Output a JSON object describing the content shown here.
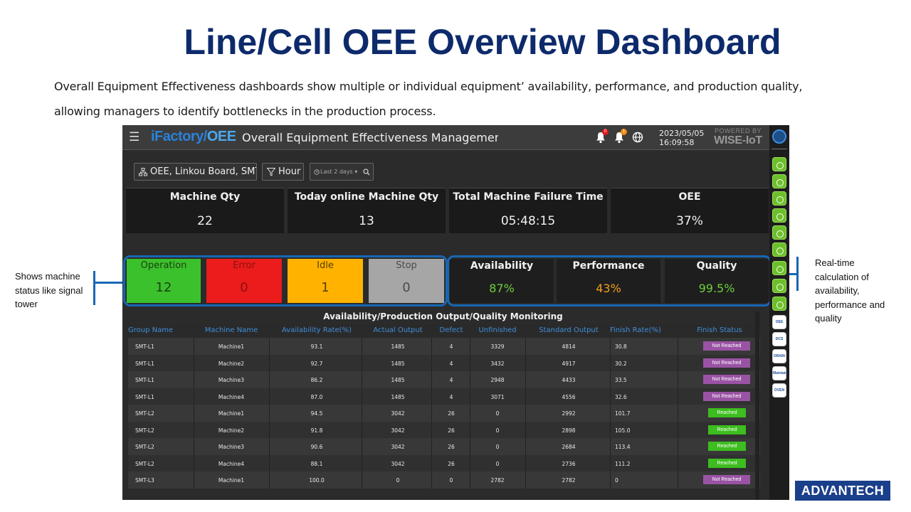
{
  "slide": {
    "title": "Line/Cell OEE Overview Dashboard",
    "description": "Overall Equipment Effectiveness dashboards show multiple or individual equipment’ availability, performance, and production quality, allowing managers to identify bottlenecks in the production process."
  },
  "annotations": {
    "left": "Shows machine status like signal tower",
    "right": "Real-time calculation of availability, performance and quality"
  },
  "app": {
    "brand_part1": "iFactory/",
    "brand_part2": "OEE",
    "system_title": "Overall Equipment Effectiveness Management System",
    "notification_badge_1": "0",
    "notification_badge_2": "1",
    "date": "2023/05/05",
    "time": "16:09:58",
    "powered_by": "POWERED BY",
    "powered_brand": "WISE-IoT"
  },
  "filters": {
    "scope": "OEE, Linkou Board, SMT",
    "granularity": "Hour",
    "range": "Last 2 days"
  },
  "kpis": [
    {
      "label": "Machine Qty",
      "value": "22"
    },
    {
      "label": "Today online Machine Qty",
      "value": "13"
    },
    {
      "label": "Total Machine Failure Time",
      "value": "05:48:15"
    },
    {
      "label": "OEE",
      "value": "37%"
    }
  ],
  "statuses": [
    {
      "label": "Operation",
      "value": "12",
      "color": "#3bc12b"
    },
    {
      "label": "Error",
      "value": "0",
      "color": "#ec1c1c"
    },
    {
      "label": "Idle",
      "value": "1",
      "color": "#ffb300"
    },
    {
      "label": "Stop",
      "value": "0",
      "color": "#a6a6a6"
    }
  ],
  "metrics": [
    {
      "label": "Availability",
      "value": "87%",
      "color": "#6ecf3a"
    },
    {
      "label": "Performance",
      "value": "43%",
      "color": "#f0a020"
    },
    {
      "label": "Quality",
      "value": "99.5%",
      "color": "#6ecf3a"
    }
  ],
  "table": {
    "title": "Availability/Production Output/Quality Monitoring",
    "headers": [
      "Group Name",
      "Machine Name",
      "Availability Rate(%)",
      "Actual Output",
      "Defect",
      "Unfinished",
      "Standard Output",
      "Finish Rate(%)",
      "Finish Status"
    ],
    "rows": [
      [
        "SMT-L1",
        "Machine1",
        "93.1",
        "1485",
        "4",
        "3329",
        "4814",
        "30.8",
        "Not Reached"
      ],
      [
        "SMT-L1",
        "Machine2",
        "92.7",
        "1485",
        "4",
        "3432",
        "4917",
        "30.2",
        "Not Reached"
      ],
      [
        "SMT-L1",
        "Machine3",
        "86.2",
        "1485",
        "4",
        "2948",
        "4433",
        "33.5",
        "Not Reached"
      ],
      [
        "SMT-L1",
        "Machine4",
        "87.0",
        "1485",
        "4",
        "3071",
        "4556",
        "32.6",
        "Not Reached"
      ],
      [
        "SMT-L2",
        "Machine1",
        "94.5",
        "3042",
        "26",
        "0",
        "2992",
        "101.7",
        "Reached"
      ],
      [
        "SMT-L2",
        "Machine2",
        "91.8",
        "3042",
        "26",
        "0",
        "2898",
        "105.0",
        "Reached"
      ],
      [
        "SMT-L2",
        "Machine3",
        "90.6",
        "3042",
        "26",
        "0",
        "2684",
        "113.4",
        "Reached"
      ],
      [
        "SMT-L2",
        "Machine4",
        "88.1",
        "3042",
        "26",
        "0",
        "2736",
        "111.2",
        "Reached"
      ],
      [
        "SMT-L3",
        "Machine1",
        "100.0",
        "0",
        "0",
        "2782",
        "2782",
        "0",
        "Not Reached"
      ]
    ]
  },
  "sidebar_apps": [
    "OEE",
    "DCS",
    "DRAIN",
    "Maintain",
    "OVEN"
  ],
  "logo": "ADVANTECH"
}
